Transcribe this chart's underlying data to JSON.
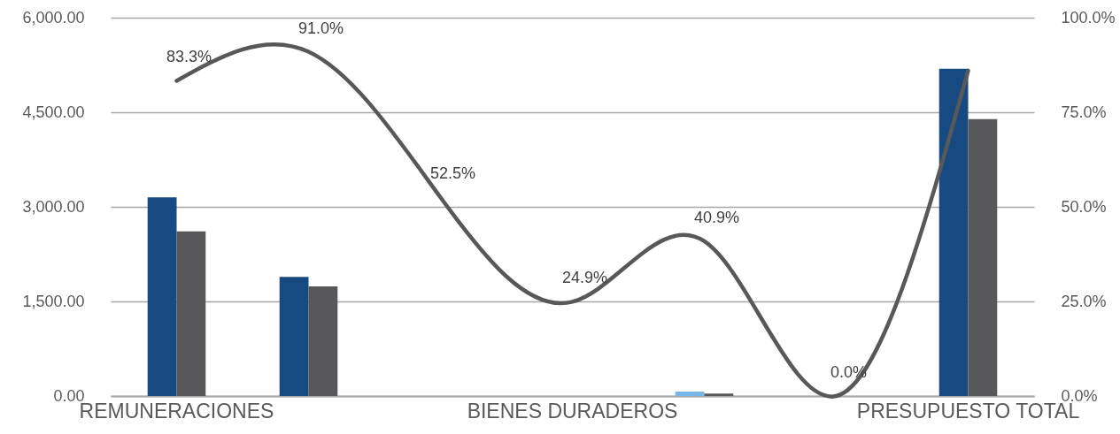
{
  "chart_data": {
    "type": "bar",
    "categories": [
      "REMUNERACIONES",
      null,
      null,
      "BIENES DURADEROS",
      null,
      null,
      "PRESUPUESTO TOTAL"
    ],
    "series": [
      {
        "colors": [
          "#164a80",
          "#164a80",
          "#164a80",
          "#164a80",
          "#77b6e6",
          "#164a80",
          "#164a80"
        ],
        "values": [
          3150,
          1890,
          null,
          null,
          70,
          null,
          5190
        ]
      },
      {
        "color": "#58585a",
        "values": [
          2610,
          1740,
          null,
          null,
          40,
          null,
          4390
        ]
      },
      {
        "type": "line",
        "axis": "y2",
        "color": "#58585a",
        "values": [
          83.3,
          91.0,
          52.5,
          24.9,
          40.9,
          0.0,
          86.0
        ],
        "value_labels": [
          "83.3%",
          "91.0%",
          "52.5%",
          "24.9%",
          "40.9%",
          "0.0%",
          null
        ]
      }
    ],
    "ylim": [
      0,
      6000
    ],
    "yticks": [
      {
        "value": 0,
        "label": "0.00"
      },
      {
        "value": 1500,
        "label": "1,500.00"
      },
      {
        "value": 3000,
        "label": "3,000.00"
      },
      {
        "value": 4500,
        "label": "4,500.00"
      },
      {
        "value": 6000,
        "label": "6,000.00"
      }
    ],
    "y2lim": [
      0,
      100
    ],
    "y2ticks": [
      {
        "value": 0,
        "label": "0.0%"
      },
      {
        "value": 25,
        "label": "25.0%"
      },
      {
        "value": 50,
        "label": "50.0%"
      },
      {
        "value": 75,
        "label": "75.0%"
      },
      {
        "value": 100,
        "label": "100.0%"
      }
    ],
    "grid": "y"
  }
}
